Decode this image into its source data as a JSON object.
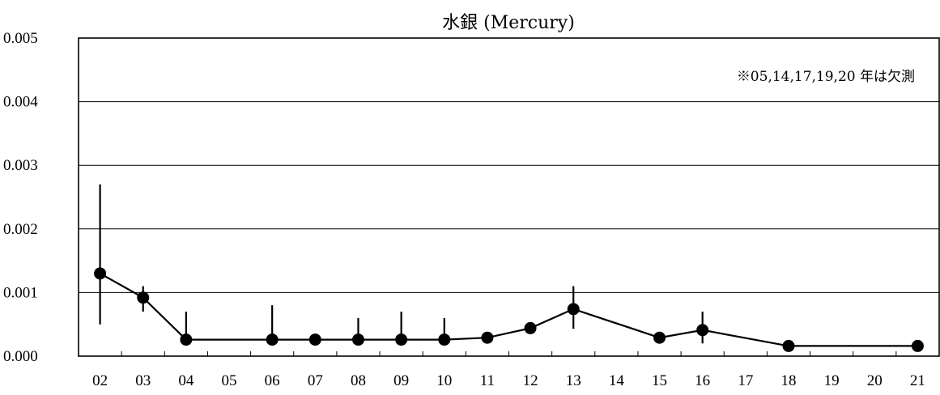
{
  "chart_data": {
    "type": "line",
    "title": "水銀 (Mercury)",
    "annotation": "※05,14,17,19,20 年は欠測",
    "categories": [
      "02",
      "03",
      "04",
      "05",
      "06",
      "07",
      "08",
      "09",
      "10",
      "11",
      "12",
      "13",
      "14",
      "15",
      "16",
      "17",
      "18",
      "19",
      "20",
      "21"
    ],
    "y_tick_labels": [
      "0.000",
      "0.001",
      "0.002",
      "0.003",
      "0.004",
      "0.005"
    ],
    "ylim": [
      0,
      0.005
    ],
    "grid": true,
    "series": [
      {
        "values": [
          0.0013,
          0.00092,
          0.00026,
          null,
          0.00026,
          0.00026,
          0.00026,
          0.00026,
          0.00026,
          0.00029,
          0.00044,
          0.00074,
          null,
          0.00029,
          0.00041,
          null,
          0.00016,
          null,
          null,
          0.00016
        ],
        "error_low": [
          0.0005,
          0.0007,
          0.00026,
          null,
          0.00026,
          0.00026,
          0.00026,
          0.00026,
          0.00026,
          0.00029,
          0.0004,
          0.00043,
          null,
          0.00029,
          0.0002,
          null,
          0.00016,
          null,
          null,
          0.00016
        ],
        "error_high": [
          0.0027,
          0.0011,
          0.0007,
          null,
          0.0008,
          0.00026,
          0.0006,
          0.0007,
          0.0006,
          0.00029,
          0.0005,
          0.0011,
          null,
          0.00029,
          0.0007,
          null,
          0.00016,
          null,
          null,
          0.00016
        ]
      }
    ],
    "colors": {
      "line": "#000000",
      "grid": "#000000",
      "background": "#ffffff"
    }
  }
}
